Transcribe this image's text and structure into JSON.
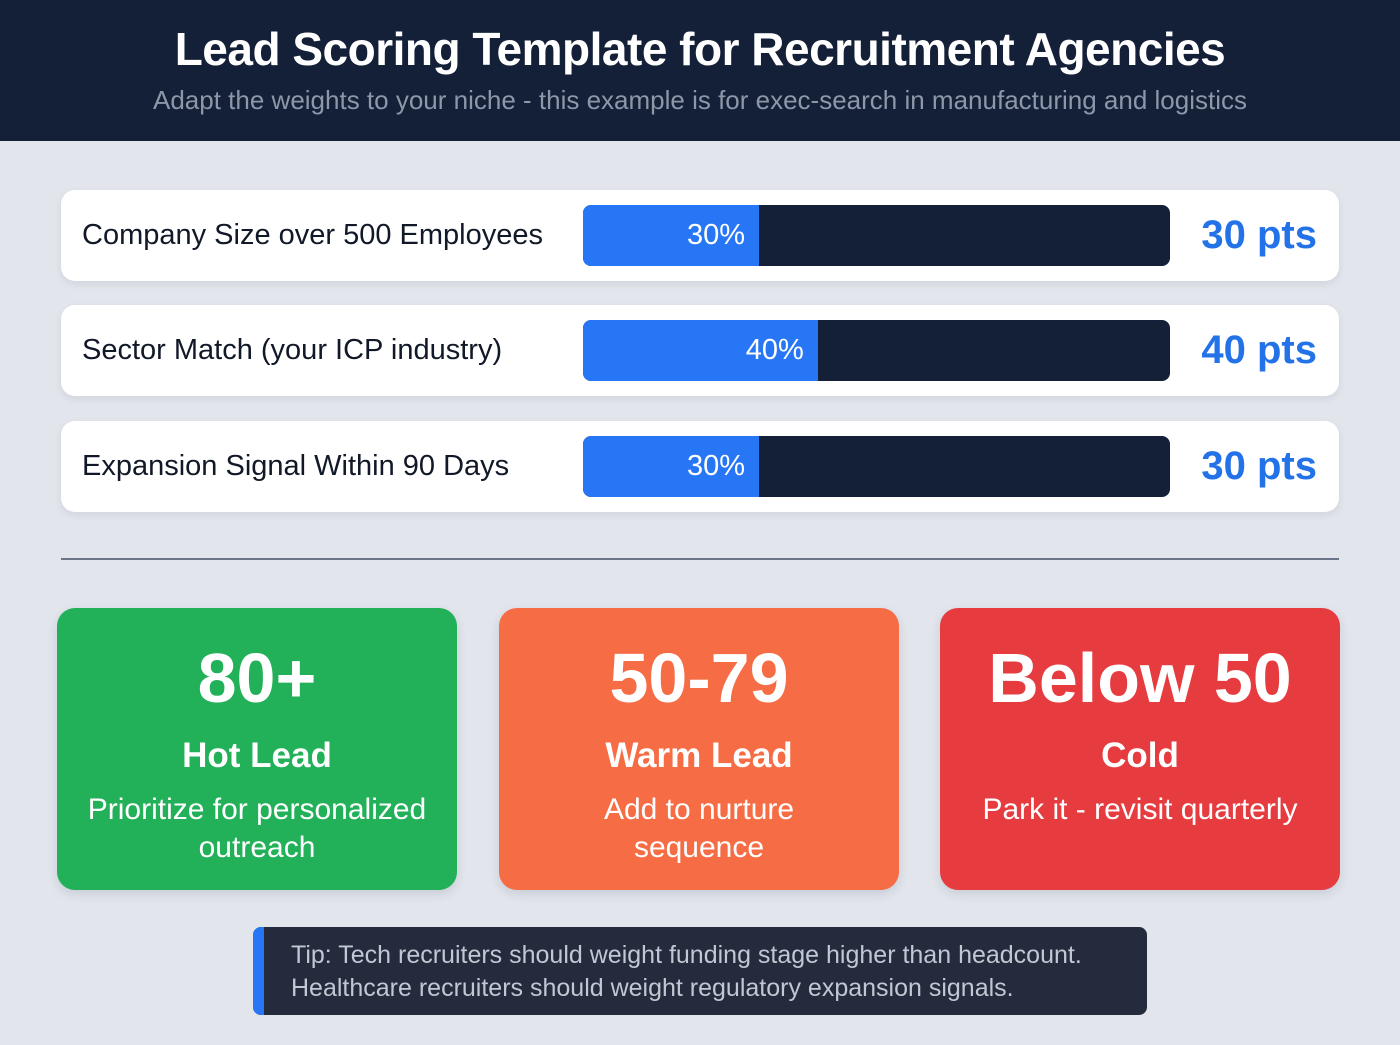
{
  "header": {
    "title": "Lead Scoring Template for Recruitment Agencies",
    "subtitle": "Adapt the weights to your niche - this example is for exec-search in manufacturing and logistics"
  },
  "criteria": [
    {
      "label": "Company Size over 500 Employees",
      "percent": 30,
      "percent_label": "30%",
      "points_label": "30 pts"
    },
    {
      "label": "Sector Match (your ICP industry)",
      "percent": 40,
      "percent_label": "40%",
      "points_label": "40 pts"
    },
    {
      "label": "Expansion Signal Within 90 Days",
      "percent": 30,
      "percent_label": "30%",
      "points_label": "30 pts"
    }
  ],
  "tiers": [
    {
      "range": "80+",
      "name": "Hot Lead",
      "description": "Prioritize for personalized outreach",
      "color": "#22b159"
    },
    {
      "range": "50-79",
      "name": "Warm Lead",
      "description": "Add to nurture sequence",
      "color": "#f66d45"
    },
    {
      "range": "Below 50",
      "name": "Cold",
      "description": "Park it - revisit quarterly",
      "color": "#e63c40"
    }
  ],
  "tip": {
    "line1": "Tip: Tech recruiters should weight funding stage higher than headcount.",
    "line2": "Healthcare recruiters should weight regulatory expansion signals."
  },
  "colors": {
    "header_bg": "#141f38",
    "bar_fill": "#2676f5",
    "bar_track": "#141f38",
    "points_text": "#2472e8",
    "page_bg": "#e2e5ec"
  },
  "chart_data": {
    "type": "bar",
    "orientation": "horizontal",
    "title": "Lead Scoring Template for Recruitment Agencies",
    "subtitle": "Adapt the weights to your niche - this example is for exec-search in manufacturing and logistics",
    "categories": [
      "Company Size over 500 Employees",
      "Sector Match (your ICP industry)",
      "Expansion Signal Within 90 Days"
    ],
    "values": [
      30,
      40,
      30
    ],
    "value_labels": [
      "30%",
      "40%",
      "30%"
    ],
    "points": [
      "30 pts",
      "40 pts",
      "30 pts"
    ],
    "xlim": [
      0,
      100
    ],
    "grid": false,
    "legend": "none",
    "thresholds": [
      {
        "range": "80+",
        "label": "Hot Lead",
        "action": "Prioritize for personalized outreach"
      },
      {
        "range": "50-79",
        "label": "Warm Lead",
        "action": "Add to nurture sequence"
      },
      {
        "range": "Below 50",
        "label": "Cold",
        "action": "Park it - revisit quarterly"
      }
    ],
    "annotation": "Tip: Tech recruiters should weight funding stage higher than headcount. Healthcare recruiters should weight regulatory expansion signals."
  }
}
